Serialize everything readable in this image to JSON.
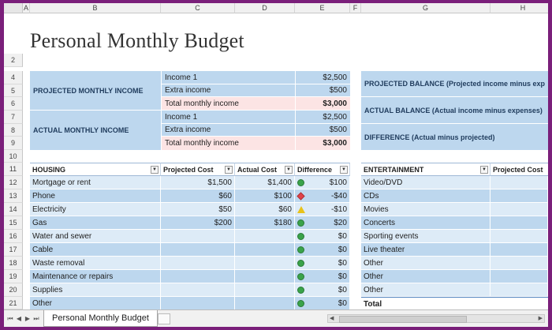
{
  "columns": [
    "A",
    "B",
    "C",
    "D",
    "E",
    "F",
    "G",
    "H"
  ],
  "rows": [
    "2",
    "4",
    "5",
    "6",
    "7",
    "8",
    "9",
    "10",
    "11",
    "12",
    "13",
    "14",
    "15",
    "16",
    "17",
    "18",
    "19",
    "20",
    "21"
  ],
  "title": "Personal Monthly Budget",
  "summary": {
    "projected_label": "PROJECTED MONTHLY INCOME",
    "actual_label": "ACTUAL MONTHLY INCOME",
    "projected": [
      {
        "label": "Income 1",
        "value": "$2,500"
      },
      {
        "label": "Extra income",
        "value": "$500"
      },
      {
        "label": "Total monthly income",
        "value": "$3,000"
      }
    ],
    "actual": [
      {
        "label": "Income 1",
        "value": "$2,500"
      },
      {
        "label": "Extra income",
        "value": "$500"
      },
      {
        "label": "Total monthly income",
        "value": "$3,000"
      }
    ],
    "balance": [
      "PROJECTED BALANCE (Projected income minus exp",
      "ACTUAL BALANCE (Actual income minus expenses)",
      "DIFFERENCE (Actual minus projected)"
    ]
  },
  "housing": {
    "headers": [
      "HOUSING",
      "Projected Cost",
      "Actual Cost",
      "Difference"
    ],
    "rows": [
      {
        "item": "Mortgage or rent",
        "projected": "$1,500",
        "actual": "$1,400",
        "indicator": "good",
        "diff": "$100"
      },
      {
        "item": "Phone",
        "projected": "$60",
        "actual": "$100",
        "indicator": "bad",
        "diff": "-$40"
      },
      {
        "item": "Electricity",
        "projected": "$50",
        "actual": "$60",
        "indicator": "warn",
        "diff": "-$10"
      },
      {
        "item": "Gas",
        "projected": "$200",
        "actual": "$180",
        "indicator": "good",
        "diff": "$20"
      },
      {
        "item": "Water and sewer",
        "projected": "",
        "actual": "",
        "indicator": "good",
        "diff": "$0"
      },
      {
        "item": "Cable",
        "projected": "",
        "actual": "",
        "indicator": "good",
        "diff": "$0"
      },
      {
        "item": "Waste removal",
        "projected": "",
        "actual": "",
        "indicator": "good",
        "diff": "$0"
      },
      {
        "item": "Maintenance or repairs",
        "projected": "",
        "actual": "",
        "indicator": "good",
        "diff": "$0"
      },
      {
        "item": "Supplies",
        "projected": "",
        "actual": "",
        "indicator": "good",
        "diff": "$0"
      },
      {
        "item": "Other",
        "projected": "",
        "actual": "",
        "indicator": "good",
        "diff": "$0"
      }
    ]
  },
  "entertainment": {
    "headers": [
      "ENTERTAINMENT",
      "Projected Cost"
    ],
    "rows": [
      "Video/DVD",
      "CDs",
      "Movies",
      "Concerts",
      "Sporting events",
      "Live theater",
      "Other",
      "Other",
      "Other",
      "Total"
    ]
  },
  "tabs": {
    "active": "Personal Monthly Budget"
  },
  "colors": {
    "header_fill": "#bdd7ee",
    "row_light": "#ddebf7",
    "total_fill": "#fce4e4",
    "frame": "#7a1f7a"
  }
}
